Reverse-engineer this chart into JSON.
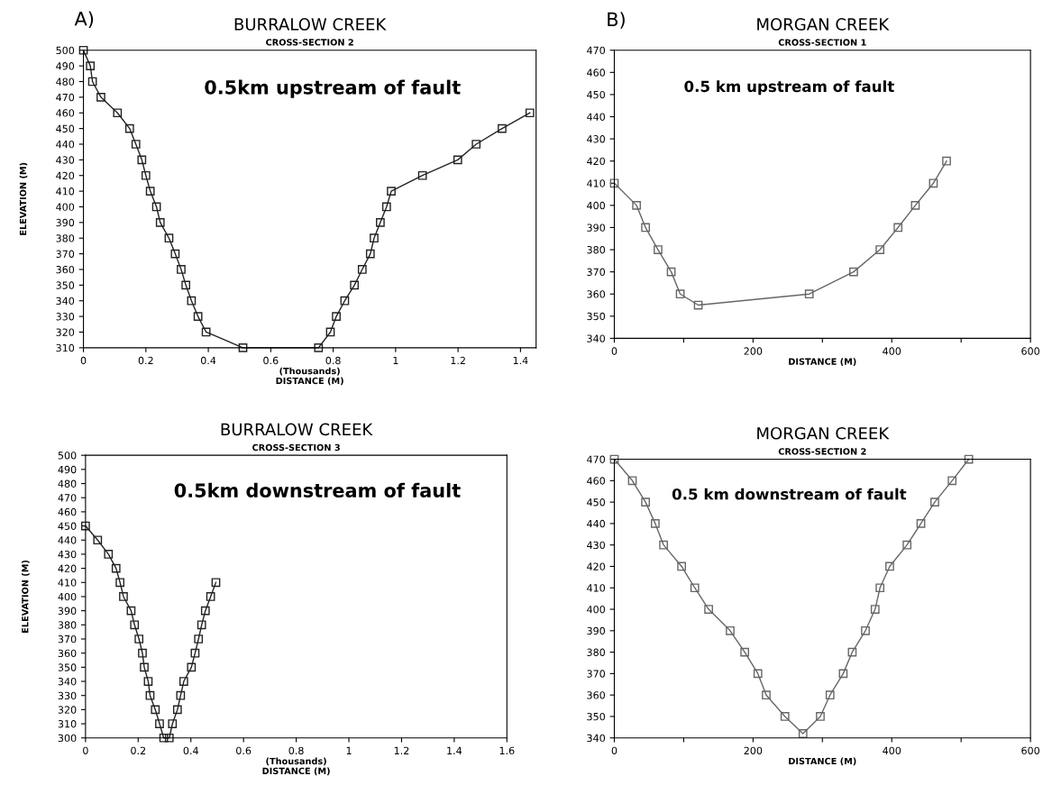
{
  "chart_data": [
    {
      "type": "line",
      "title": "BURRALOW CREEK",
      "subtitle": "CROSS-SECTION 2",
      "xlabel": "(Thousands)\nDISTANCE (M)",
      "ylabel": "ELEVATION (M)",
      "annotations": [
        "A)",
        "0.5km upstream of fault"
      ],
      "marker": "square",
      "grid": false,
      "xlim": [
        0,
        1.45
      ],
      "xticks": [
        0,
        0.2,
        0.4,
        0.6,
        0.8,
        1,
        1.2,
        1.4
      ],
      "ylim": [
        310,
        500
      ],
      "yticks": [
        310,
        320,
        330,
        340,
        350,
        360,
        370,
        380,
        390,
        400,
        410,
        420,
        430,
        440,
        450,
        460,
        470,
        480,
        490,
        500
      ],
      "series": [
        {
          "color": "#222222",
          "x": [
            0,
            0.022,
            0.029,
            0.056,
            0.109,
            0.148,
            0.168,
            0.187,
            0.2,
            0.214,
            0.234,
            0.246,
            0.274,
            0.294,
            0.313,
            0.328,
            0.346,
            0.367,
            0.393,
            0.511,
            0.753,
            0.791,
            0.81,
            0.837,
            0.868,
            0.893,
            0.919,
            0.931,
            0.951,
            0.971,
            0.986,
            1.086,
            1.199,
            1.258,
            1.341,
            1.43
          ],
          "values": [
            500,
            490,
            480,
            470,
            460,
            450,
            440,
            430,
            420,
            410,
            400,
            390,
            380,
            370,
            360,
            350,
            340,
            330,
            320,
            310,
            310,
            320,
            330,
            340,
            350,
            360,
            370,
            380,
            390,
            400,
            410,
            420,
            430,
            440,
            450,
            460
          ]
        }
      ]
    },
    {
      "type": "line",
      "title": "BURRALOW CREEK",
      "subtitle": "CROSS-SECTION 3",
      "xlabel": "(Thousands)\nDISTANCE (M)",
      "ylabel": "ELEVATION (M)",
      "annotations": [
        "0.5km downstream of fault"
      ],
      "marker": "square",
      "grid": false,
      "xlim": [
        0,
        1.6
      ],
      "xticks": [
        0,
        0.2,
        0.4,
        0.6,
        0.8,
        1,
        1.2,
        1.4,
        1.6
      ],
      "ylim": [
        300,
        500
      ],
      "yticks": [
        300,
        310,
        320,
        330,
        340,
        350,
        360,
        370,
        380,
        390,
        400,
        410,
        420,
        430,
        440,
        450,
        460,
        470,
        480,
        490,
        500
      ],
      "series": [
        {
          "color": "#222222",
          "x": [
            0,
            0.046,
            0.087,
            0.116,
            0.131,
            0.144,
            0.173,
            0.186,
            0.203,
            0.216,
            0.223,
            0.238,
            0.245,
            0.265,
            0.281,
            0.297,
            0.318,
            0.33,
            0.349,
            0.361,
            0.373,
            0.402,
            0.416,
            0.429,
            0.441,
            0.455,
            0.475,
            0.495
          ],
          "values": [
            450,
            440,
            430,
            420,
            410,
            400,
            390,
            380,
            370,
            360,
            350,
            340,
            330,
            320,
            310,
            300,
            300,
            310,
            320,
            330,
            340,
            350,
            360,
            370,
            380,
            390,
            400,
            410
          ]
        }
      ]
    },
    {
      "type": "line",
      "title": "MORGAN CREEK",
      "subtitle": "CROSS-SECTION 1",
      "xlabel": "DISTANCE (M)",
      "annotations": [
        "B)",
        "0.5 km upstream of fault"
      ],
      "marker": "square",
      "grid": false,
      "xlim": [
        0,
        600
      ],
      "xticks": [
        0,
        {
          "value": 100,
          "label": null
        },
        200,
        {
          "value": 300,
          "label": null
        },
        400,
        {
          "value": 500,
          "label": null
        },
        600
      ],
      "ylim": [
        340,
        470
      ],
      "yticks": [
        340,
        350,
        360,
        370,
        380,
        390,
        400,
        410,
        420,
        430,
        440,
        450,
        460,
        470
      ],
      "series": [
        {
          "color": "#666666",
          "x": [
            0,
            32,
            45,
            63,
            82,
            95,
            121,
            281,
            345,
            383,
            409,
            434,
            460,
            479
          ],
          "values": [
            410,
            400,
            390,
            380,
            370,
            360,
            355,
            360,
            370,
            380,
            390,
            400,
            410,
            420
          ]
        }
      ]
    },
    {
      "type": "line",
      "title": "MORGAN CREEK",
      "subtitle": "CROSS-SECTION 2",
      "xlabel": "DISTANCE (M)",
      "annotations": [
        "0.5 km downstream of fault"
      ],
      "marker": "square",
      "grid": false,
      "xlim": [
        0,
        600
      ],
      "xticks": [
        0,
        {
          "value": 100,
          "label": null
        },
        200,
        {
          "value": 300,
          "label": null
        },
        400,
        {
          "value": 500,
          "label": null
        },
        600
      ],
      "ylim": [
        340,
        470
      ],
      "yticks": [
        340,
        350,
        360,
        370,
        380,
        390,
        400,
        410,
        420,
        430,
        440,
        450,
        460,
        470
      ],
      "series": [
        {
          "color": "#666666",
          "x": [
            0,
            26,
            45,
            59,
            71,
            97,
            116,
            136,
            167,
            188,
            207,
            219,
            246,
            272,
            297,
            311,
            330,
            343,
            362,
            376,
            383,
            397,
            422,
            442,
            462,
            487,
            511
          ],
          "values": [
            470,
            460,
            450,
            440,
            430,
            420,
            410,
            400,
            390,
            380,
            370,
            360,
            350,
            342,
            350,
            360,
            370,
            380,
            390,
            400,
            410,
            420,
            430,
            440,
            450,
            460,
            470
          ]
        }
      ]
    }
  ]
}
